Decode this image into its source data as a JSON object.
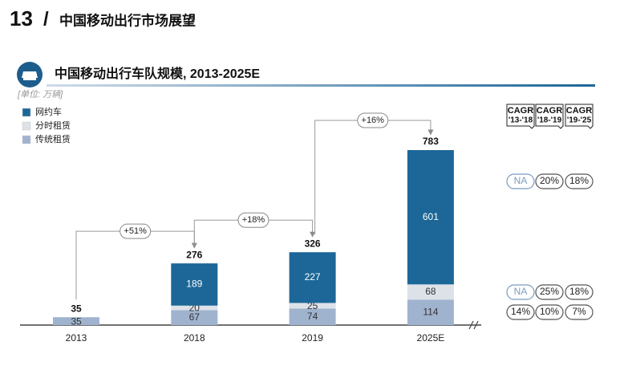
{
  "header": {
    "number": "13",
    "slash": "/",
    "title": "中国移动出行市场展望"
  },
  "chart_data": {
    "type": "stacked-bar",
    "title": "中国移动出行车队规模, 2013-2025E",
    "unit": "[单位: 万辆]",
    "categories": [
      "2013",
      "2018",
      "2019",
      "2025E"
    ],
    "series": [
      {
        "name": "网约车",
        "color": "#1d6798",
        "values": [
          null,
          189,
          227,
          601
        ]
      },
      {
        "name": "分时租赁",
        "color": "#dde2e9",
        "values": [
          null,
          20,
          25,
          68
        ]
      },
      {
        "name": "传统租赁",
        "color": "#9fb3cf",
        "values": [
          35,
          67,
          74,
          114
        ]
      }
    ],
    "totals": [
      35,
      276,
      326,
      783
    ],
    "growth": [
      "+51%",
      "+18%",
      "+16%"
    ],
    "cagr": {
      "headers": [
        {
          "title": "CAGR",
          "period": "'13-'18"
        },
        {
          "title": "CAGR",
          "period": "'18-'19"
        },
        {
          "title": "CAGR",
          "period": "'19-'25"
        }
      ],
      "rows": [
        [
          "NA",
          "20%",
          "18%"
        ],
        [
          "NA",
          "25%",
          "18%"
        ],
        [
          "14%",
          "10%",
          "7%"
        ]
      ]
    }
  }
}
